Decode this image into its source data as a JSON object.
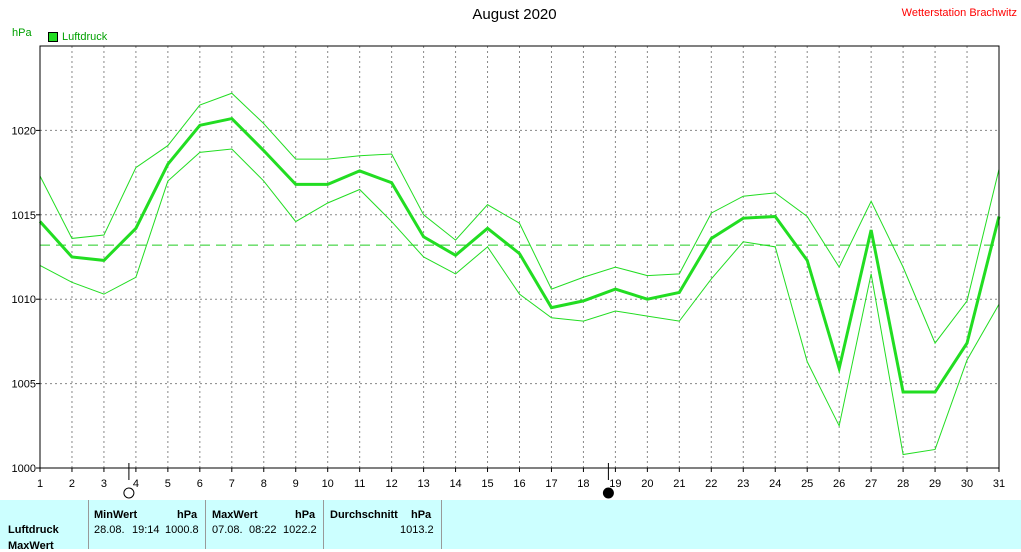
{
  "header": {
    "title": "August 2020",
    "station": "Wetterstation Brachwitz",
    "unit": "hPa",
    "legend_label": "Luftdruck",
    "legend_color": "#22dd22"
  },
  "chart_data": {
    "type": "line",
    "title": "August 2020",
    "ylabel": "hPa",
    "x": [
      1,
      2,
      3,
      4,
      5,
      6,
      7,
      8,
      9,
      10,
      11,
      12,
      13,
      14,
      15,
      16,
      17,
      18,
      19,
      20,
      21,
      22,
      23,
      24,
      25,
      26,
      27,
      28,
      29,
      30,
      31
    ],
    "xlim": [
      1,
      31
    ],
    "ylim": [
      1000,
      1025
    ],
    "yticks": [
      1000,
      1005,
      1010,
      1015,
      1020
    ],
    "xticks": [
      1,
      2,
      3,
      4,
      5,
      6,
      7,
      8,
      9,
      10,
      11,
      12,
      13,
      14,
      15,
      16,
      17,
      18,
      19,
      20,
      21,
      22,
      23,
      24,
      25,
      26,
      27,
      28,
      29,
      30,
      31
    ],
    "grid": true,
    "series": [
      {
        "name": "Luftdruck",
        "role": "mean",
        "color": "#22dd22",
        "values": [
          1014.6,
          1012.5,
          1012.3,
          1014.2,
          1018.0,
          1020.3,
          1020.7,
          1018.8,
          1016.8,
          1016.8,
          1017.6,
          1016.9,
          1013.7,
          1012.6,
          1014.2,
          1012.7,
          1009.5,
          1009.9,
          1010.6,
          1010.0,
          1010.4,
          1013.6,
          1014.8,
          1014.9,
          1012.3,
          1005.9,
          1014.1,
          1004.5,
          1004.5,
          1007.4,
          1014.9
        ]
      },
      {
        "role": "max",
        "color": "#22dd22",
        "values": [
          1017.3,
          1013.6,
          1013.8,
          1017.8,
          1019.1,
          1021.5,
          1022.2,
          1020.4,
          1018.3,
          1018.3,
          1018.5,
          1018.6,
          1015.0,
          1013.5,
          1015.6,
          1014.5,
          1010.6,
          1011.3,
          1011.9,
          1011.4,
          1011.5,
          1015.1,
          1016.1,
          1016.3,
          1014.9,
          1011.9,
          1015.8,
          1011.9,
          1007.4,
          1009.9,
          1017.7
        ]
      },
      {
        "role": "min",
        "color": "#22dd22",
        "values": [
          1012.0,
          1011.0,
          1010.3,
          1011.3,
          1017.0,
          1018.7,
          1018.9,
          1017.0,
          1014.6,
          1015.7,
          1016.5,
          1014.6,
          1012.5,
          1011.5,
          1013.1,
          1010.3,
          1008.9,
          1008.7,
          1009.3,
          1009.0,
          1008.7,
          1011.2,
          1013.4,
          1013.1,
          1006.3,
          1002.5,
          1011.5,
          1000.8,
          1001.1,
          1006.4,
          1009.7
        ]
      }
    ],
    "average_line": {
      "value": 1013.2,
      "style": "dashed"
    },
    "moon_phases": [
      {
        "day": 4,
        "phase": "full"
      },
      {
        "day": 19,
        "phase": "new"
      }
    ]
  },
  "stats": {
    "minwert": {
      "header": "MinWert",
      "unit": "hPa",
      "date": "28.08.",
      "time": "19:14",
      "value": "1000.8"
    },
    "maxwert": {
      "header": "MaxWert",
      "unit": "hPa",
      "date": "07.08.",
      "time": "08:22",
      "value": "1022.2"
    },
    "durchschnitt": {
      "header": "Durchschnitt",
      "unit": "hPa",
      "value": "1013.2"
    },
    "row_labels": [
      "Luftdruck",
      "MaxWert"
    ]
  }
}
